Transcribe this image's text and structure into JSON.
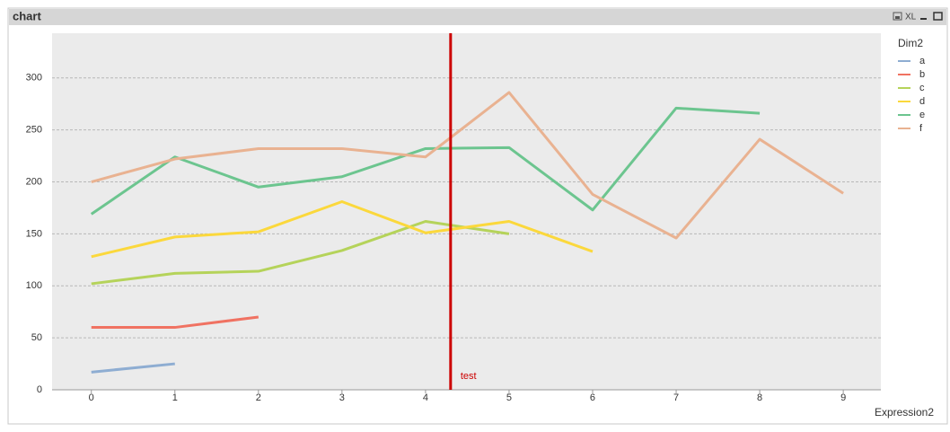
{
  "window": {
    "title": "chart",
    "button_label": "XL"
  },
  "chart_data": {
    "type": "line",
    "x": [
      0,
      1,
      2,
      3,
      4,
      5,
      6,
      7,
      8,
      9
    ],
    "xlabel": "Expression2",
    "legend_title": "Dim2",
    "legend": "right",
    "grid": true,
    "xlim": [
      -0.47,
      9.45
    ],
    "xticks": [
      0,
      1,
      2,
      3,
      4,
      5,
      6,
      7,
      8,
      9
    ],
    "ylim": [
      0,
      343
    ],
    "yticks": [
      0,
      50,
      100,
      150,
      200,
      250,
      300
    ],
    "series": [
      {
        "name": "a",
        "color": "#8eadd2",
        "values": [
          17,
          25,
          null,
          null,
          null,
          null,
          null,
          null,
          null,
          null
        ]
      },
      {
        "name": "b",
        "color": "#f07262",
        "values": [
          60,
          60,
          70,
          null,
          null,
          null,
          null,
          null,
          null,
          null
        ]
      },
      {
        "name": "c",
        "color": "#b5d35a",
        "values": [
          102,
          112,
          114,
          134,
          162,
          150,
          null,
          null,
          null,
          null
        ]
      },
      {
        "name": "d",
        "color": "#fbd83c",
        "values": [
          128,
          147,
          152,
          181,
          151,
          162,
          133,
          null,
          null,
          null
        ]
      },
      {
        "name": "e",
        "color": "#6cc58f",
        "values": [
          169,
          224,
          195,
          205,
          232,
          233,
          173,
          271,
          266,
          null
        ]
      },
      {
        "name": "f",
        "color": "#e9b291",
        "values": [
          200,
          222,
          232,
          232,
          224,
          286,
          188,
          146,
          241,
          189
        ]
      }
    ],
    "reference_lines": [
      {
        "x": 4.3,
        "label": "test",
        "color": "#cc0000"
      }
    ]
  }
}
